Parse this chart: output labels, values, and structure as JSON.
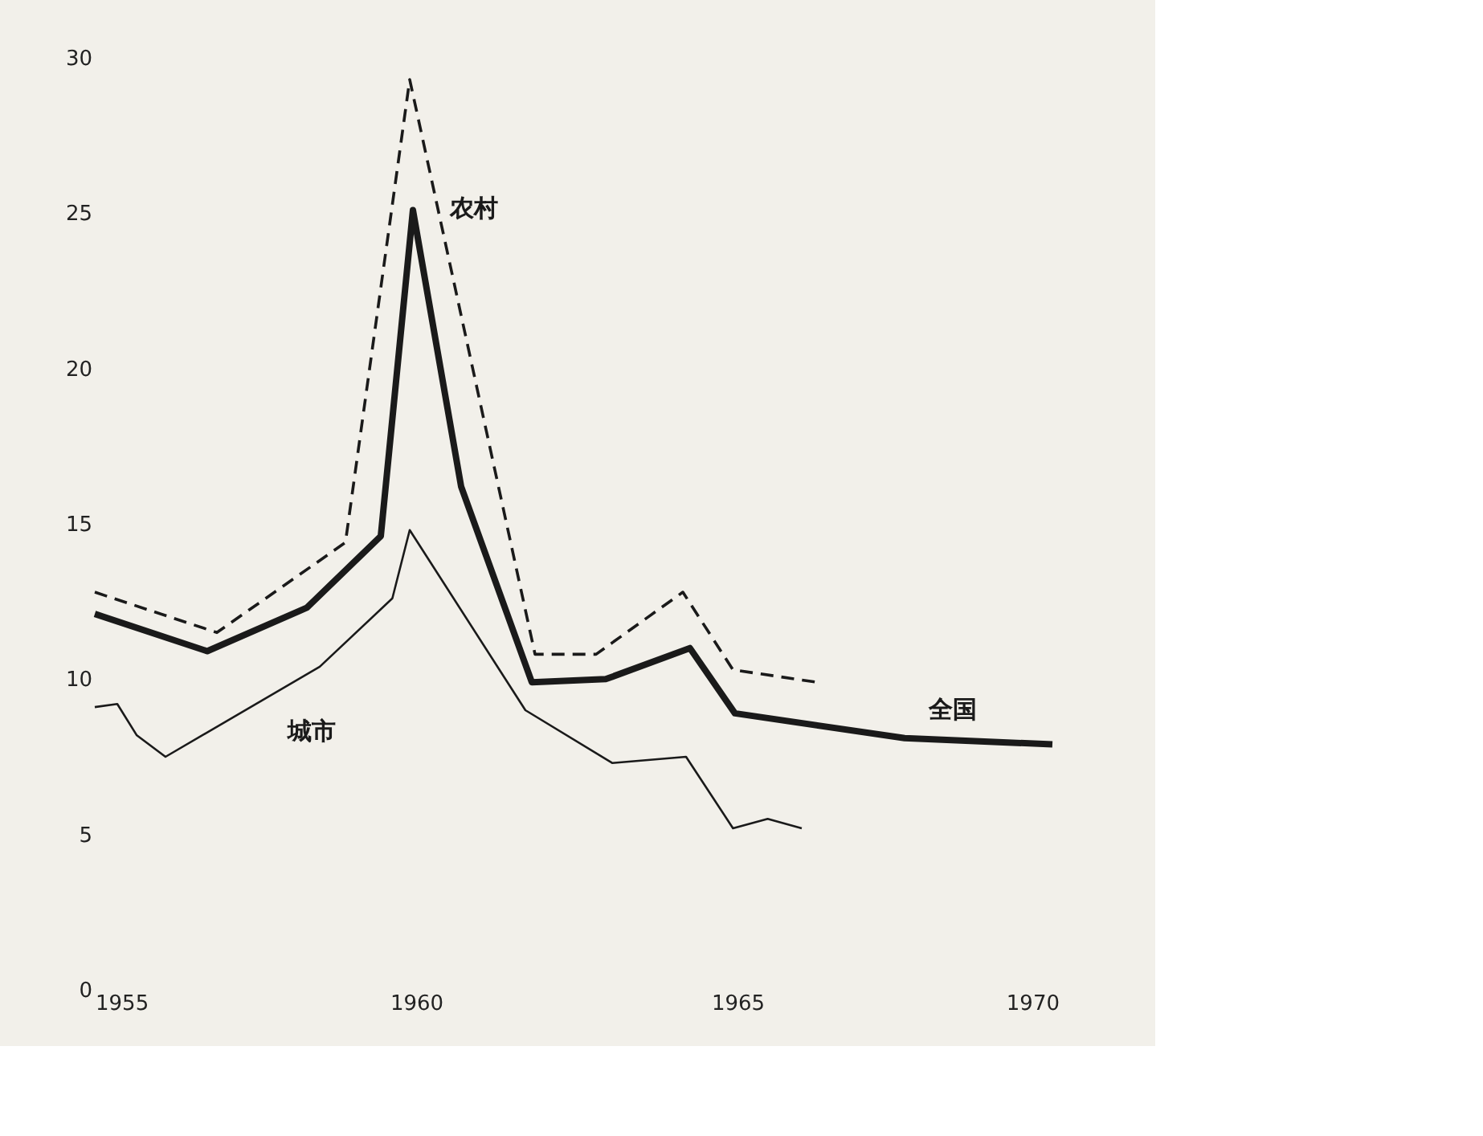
{
  "chart_data": {
    "type": "line",
    "xlim": [
      1955,
      1970
    ],
    "xticks": [
      1955,
      1960,
      1965,
      1970
    ],
    "ylim": [
      0,
      30
    ],
    "yticks": [
      0,
      5,
      10,
      15,
      20,
      25,
      30
    ],
    "grid": false,
    "marker": "none",
    "series": [
      {
        "name": "全国",
        "color": "#1a1a1a",
        "line_style": "solid",
        "x": [
          1955,
          1956.75,
          1958.3,
          1959.45,
          1959.95,
          1960.7,
          1961.8,
          1962.95,
          1964.26,
          1964.96,
          1967.6,
          1969.9
        ],
        "values": [
          12.1,
          10.9,
          12.3,
          14.6,
          25.1,
          16.2,
          9.9,
          10.0,
          11.0,
          8.9,
          8.1,
          7.9
        ]
      },
      {
        "name": "农村",
        "color": "#1a1a1a",
        "line_style": "dashed",
        "x": [
          1955,
          1956.9,
          1958.9,
          1959.9,
          1961.85,
          1962.8,
          1964.15,
          1964.93,
          1966.24
        ],
        "values": [
          12.8,
          11.5,
          14.4,
          29.3,
          10.8,
          10.8,
          12.8,
          10.3,
          9.9
        ]
      },
      {
        "name": "城市",
        "color": "#1a1a1a",
        "line_style": "solid",
        "x": [
          1955,
          1955.35,
          1955.65,
          1956.1,
          1958.5,
          1959.63,
          1959.9,
          1961.7,
          1963.05,
          1964.2,
          1964.93,
          1965.47,
          1966.0
        ],
        "values": [
          9.1,
          9.2,
          8.2,
          7.5,
          10.4,
          12.6,
          14.8,
          9.0,
          7.3,
          7.5,
          5.2,
          5.5,
          5.2
        ]
      }
    ]
  }
}
